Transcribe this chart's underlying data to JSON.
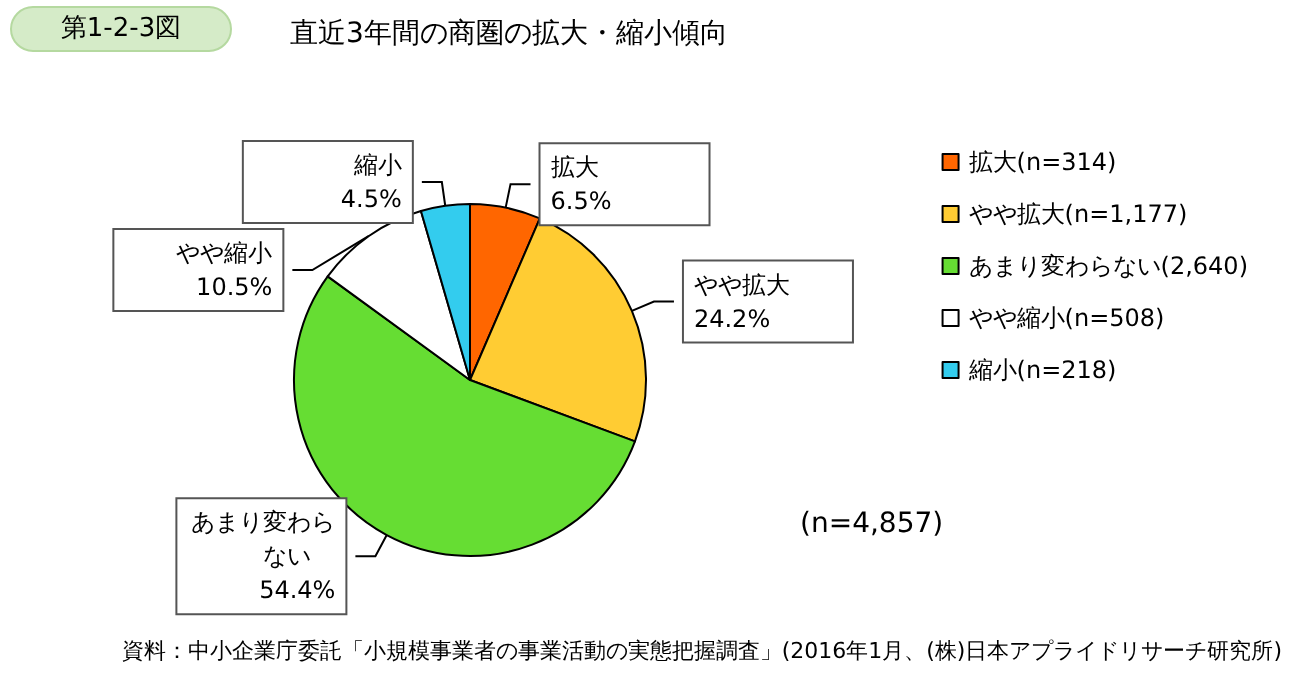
{
  "chart_data": {
    "type": "pie",
    "title": "直近3年間の商圏の拡大・縮小傾向",
    "categories": [
      "拡大(n=314)",
      "やや拡大(n=1,177)",
      "あまり変わらない(2,640)",
      "やや縮小(n=508)",
      "縮小(n=218)"
    ],
    "values": [
      6.5,
      24.2,
      54.4,
      10.5,
      4.5
    ],
    "colors": [
      "#ff6600",
      "#ffcc33",
      "#66dd33",
      "#ffffff",
      "#33ccee"
    ],
    "value_labels": [
      "拡大\n6.5%",
      "やや拡大\n24.2%",
      "あまり変わらない　54.4%",
      "やや縮小\n10.5%",
      "縮小\n4.5%"
    ],
    "legend": "right",
    "annotations": [
      "第1-2-3図",
      "(n=4,857)",
      "資料：中小企業庁委託「小規模事業者の事業活動の実態把握調査」(2016年1月、(株)日本アプライドリサーチ研究所)"
    ]
  }
}
